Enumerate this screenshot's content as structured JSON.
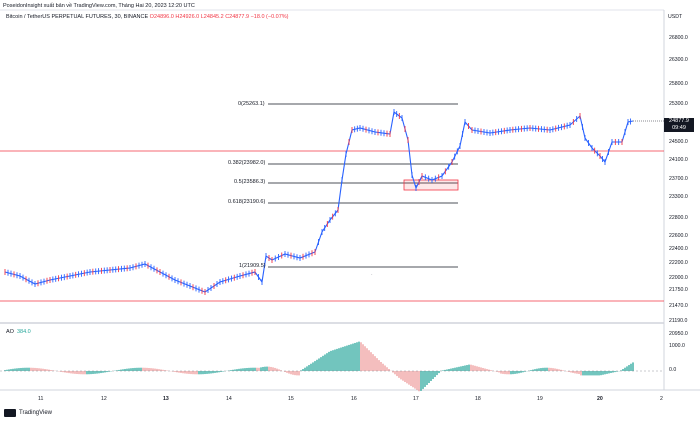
{
  "header": {
    "published": "PoseidonInsight xuất bản về TradingView.com, Tháng Hai 20, 2023 12:20 UTC"
  },
  "symbol": {
    "title": "Bitcoin / TetherUS PERPETUAL FUTURES, 30, BINANCE",
    "ohlc": "O24896.0 H24926.0 L24845.2 C24877.9 −18.0 (−0.07%)"
  },
  "price_axis": {
    "currency": "USDT",
    "labels": [
      "26800.0",
      "26300.0",
      "25800.0",
      "25300.0",
      "24500.0",
      "24100.0",
      "23700.0",
      "23300.0",
      "22800.0",
      "22600.0",
      "22400.0",
      "22200.0",
      "22000.0",
      "21750.0",
      "21470.0",
      "21190.0",
      "20950.0"
    ],
    "current_price": "24877.9",
    "countdown": "09:49"
  },
  "fib_levels": [
    {
      "label": "0(25263.1)"
    },
    {
      "label": "0.382(23982.0)"
    },
    {
      "label": "0.5(23586.3)"
    },
    {
      "label": "0.618(23190.6)"
    },
    {
      "label": "1(21909.5)"
    }
  ],
  "ao": {
    "name": "AO",
    "value": "384.0",
    "scale": [
      "1000.0",
      "0.0"
    ]
  },
  "time_axis": [
    "11",
    "12",
    "13",
    "14",
    "15",
    "16",
    "17",
    "18",
    "19",
    "20",
    "2"
  ],
  "footer": {
    "brand": "TradingView"
  },
  "colors": {
    "up": "#2962ff",
    "down": "#f23645",
    "ao_up": "#26a69a",
    "ao_down": "#ef9a9a",
    "hline": "#f23645",
    "fib": "#131722"
  }
}
